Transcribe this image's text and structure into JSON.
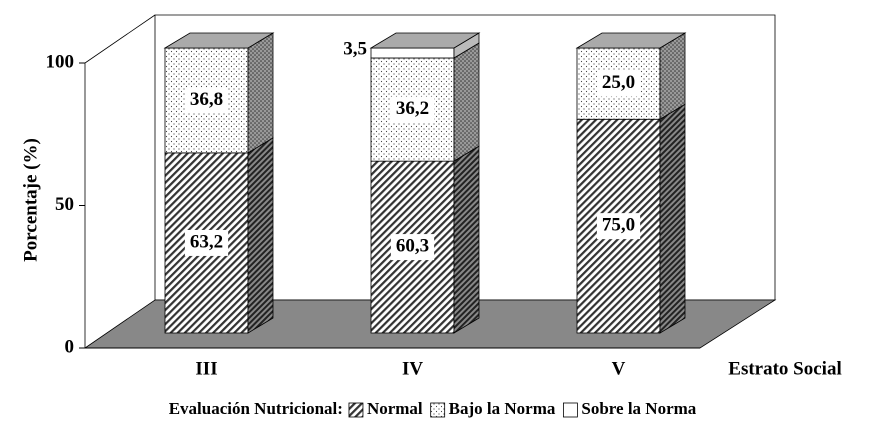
{
  "chart_data": {
    "type": "bar3d_stacked",
    "y_label": "Porcentaje (%)",
    "x_label": "Estrato Social",
    "legend_title": "Evaluación Nutricional:",
    "categories": [
      "III",
      "IV",
      "V"
    ],
    "series": [
      {
        "name": "Normal",
        "values": [
          63.2,
          60.3,
          75.0
        ],
        "value_labels": [
          "63,2",
          "60,3",
          "75,0"
        ]
      },
      {
        "name": "Bajo la Norma",
        "values": [
          36.8,
          36.2,
          25.0
        ],
        "value_labels": [
          "36,8",
          "36,2",
          "25,0"
        ]
      },
      {
        "name": "Sobre la Norma",
        "values": [
          null,
          3.5,
          null
        ],
        "value_labels": [
          null,
          "3,5",
          null
        ]
      }
    ],
    "ylim": [
      0,
      100
    ],
    "yticks": [
      0,
      50,
      100
    ]
  }
}
